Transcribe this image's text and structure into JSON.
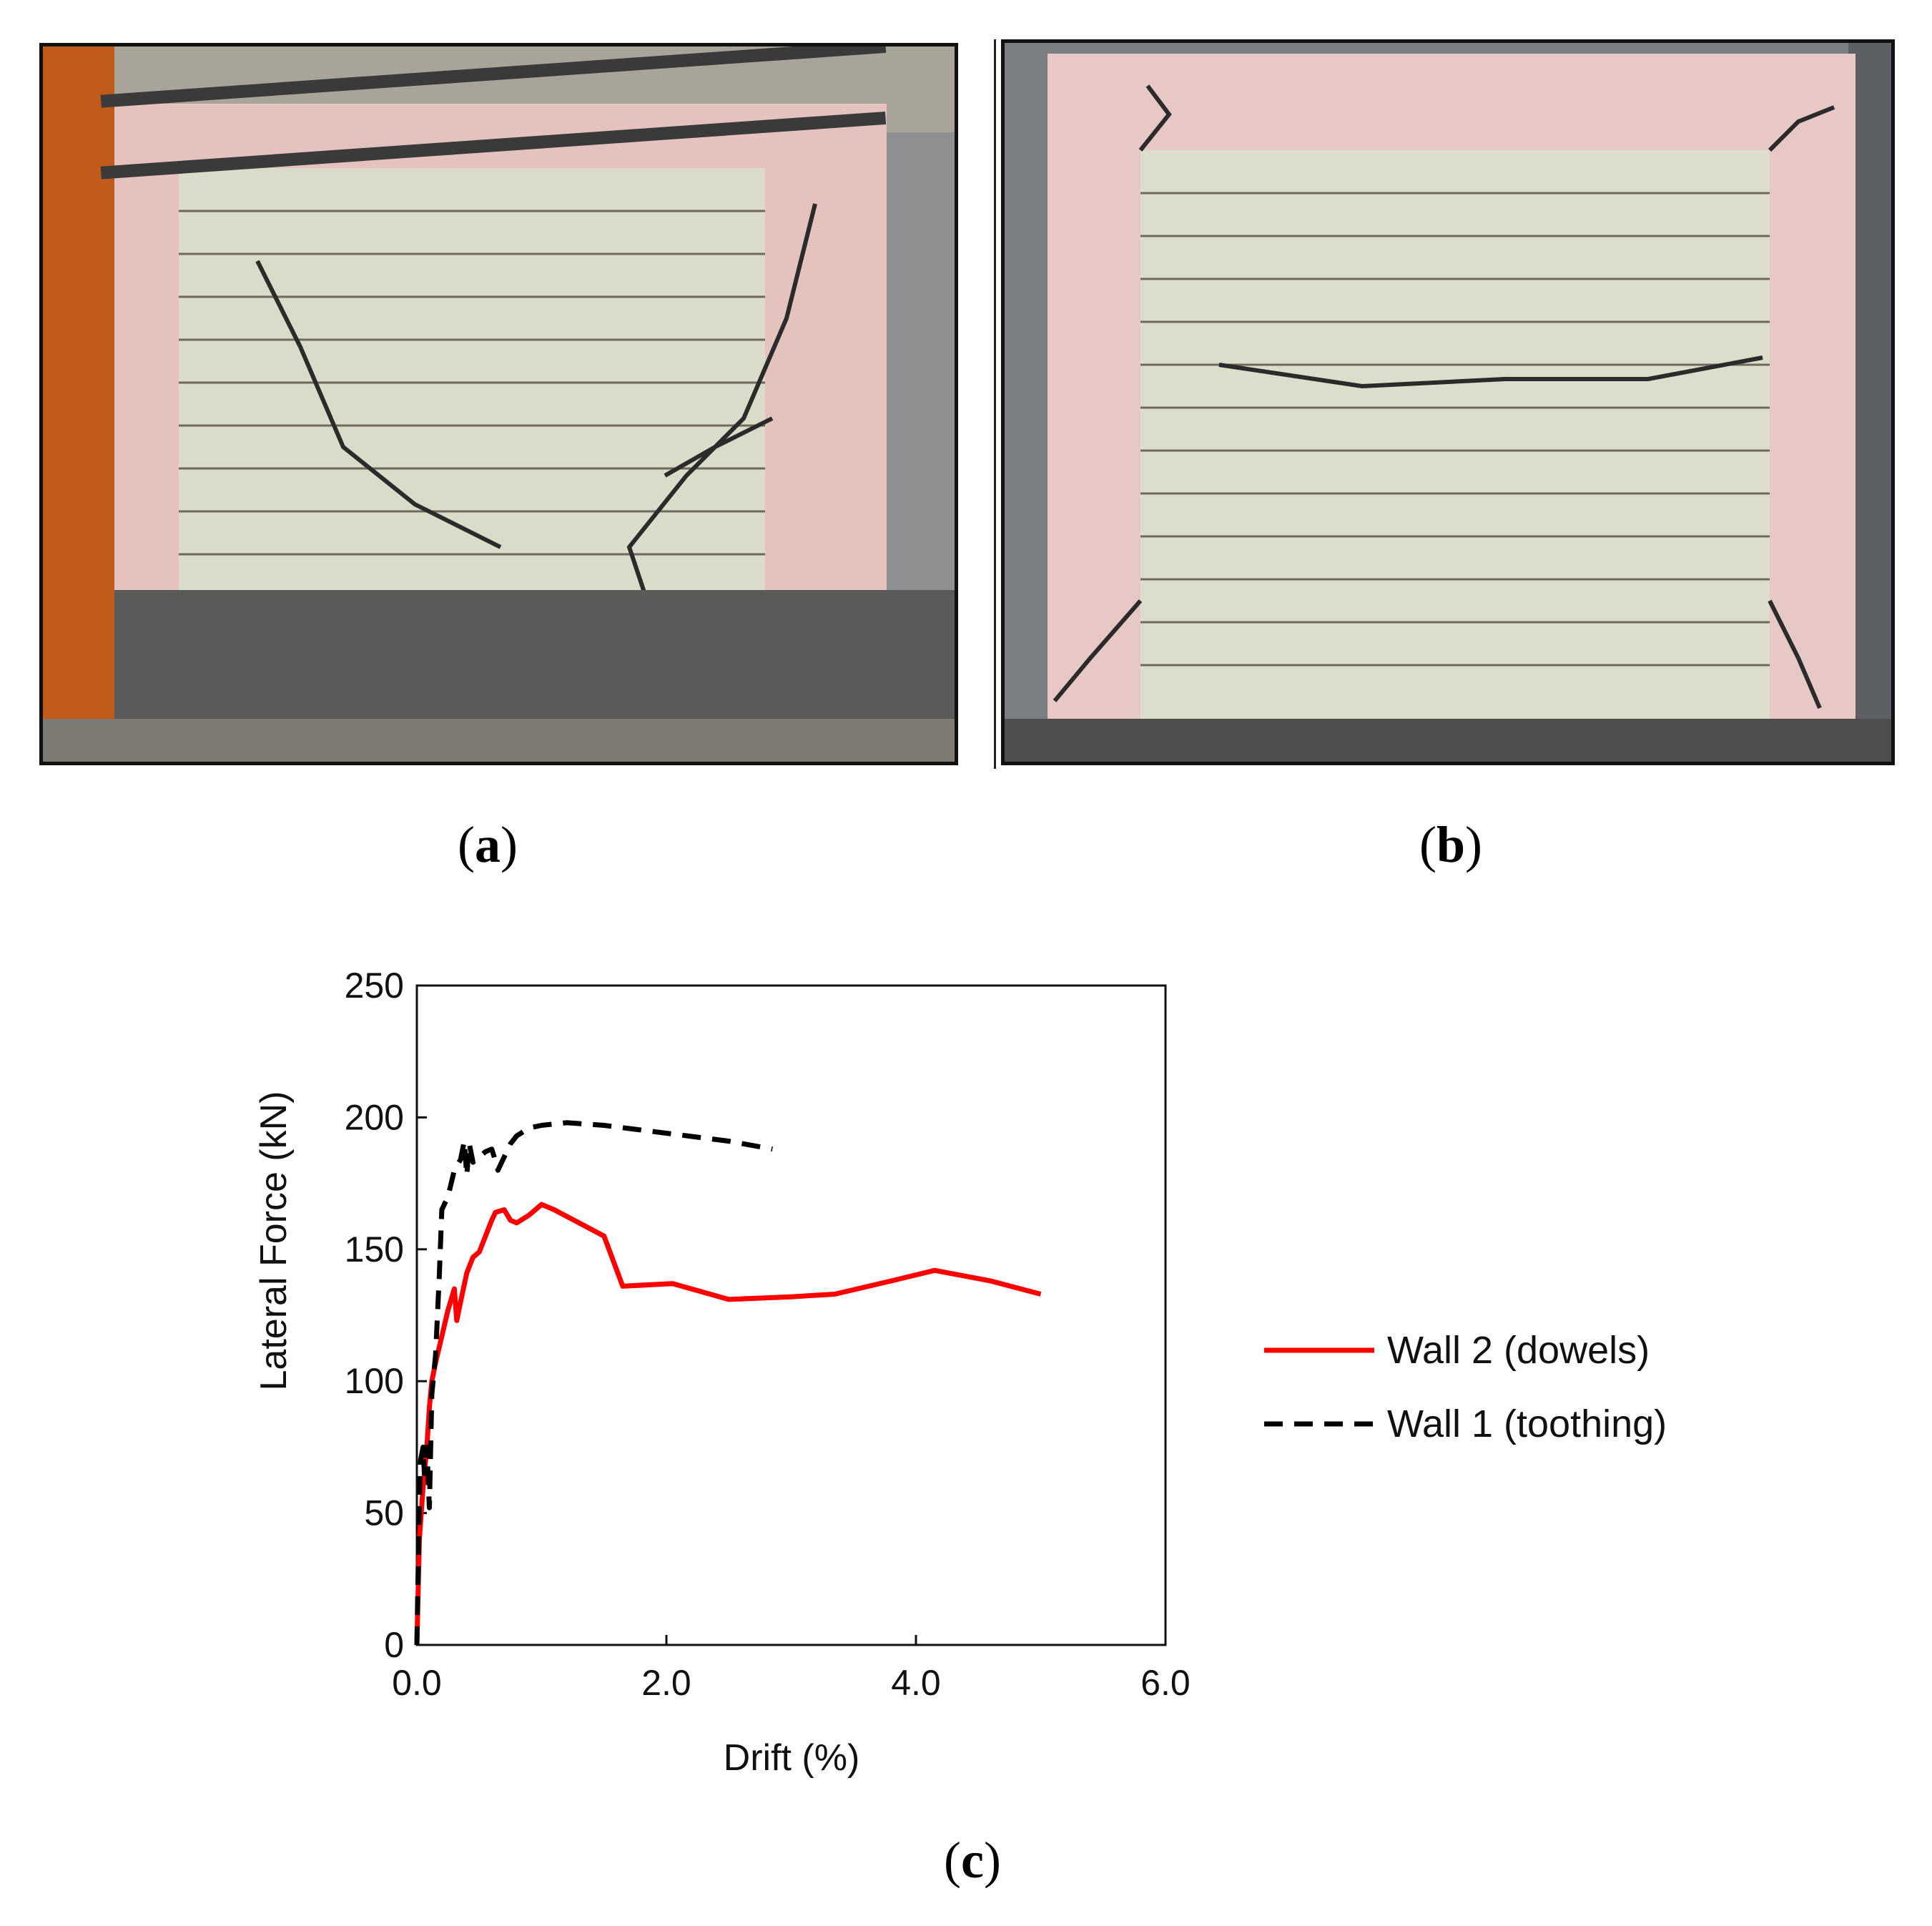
{
  "panels": {
    "a": "a",
    "b": "b",
    "c": "c"
  },
  "colors": {
    "wall2": "#ff0000",
    "wall1": "#000000",
    "plaster": "#e8c3c3",
    "brick": "#dcdcc8",
    "floor": "#555555"
  },
  "chart_data": {
    "type": "line",
    "xlabel": "Drift (%)",
    "ylabel": "Lateral Force (kN)",
    "xlim": [
      0,
      6
    ],
    "ylim": [
      0,
      250
    ],
    "xticks": [
      "0.0",
      "2.0",
      "4.0",
      "6.0"
    ],
    "yticks": [
      "0",
      "50",
      "100",
      "150",
      "200",
      "250"
    ],
    "grid": false,
    "legend_position": "right",
    "series": [
      {
        "name": "Wall 2 (dowels)",
        "style": "solid",
        "x": [
          0.0,
          0.02,
          0.05,
          0.08,
          0.1,
          0.12,
          0.15,
          0.2,
          0.25,
          0.3,
          0.32,
          0.35,
          0.4,
          0.45,
          0.5,
          0.55,
          0.6,
          0.63,
          0.7,
          0.75,
          0.8,
          0.9,
          1.0,
          1.1,
          1.3,
          1.5,
          1.65,
          2.05,
          2.5,
          3.0,
          3.35,
          3.8,
          4.15,
          4.6,
          5.0
        ],
        "y": [
          0,
          40,
          60,
          75,
          90,
          100,
          107,
          117,
          127,
          135,
          123,
          130,
          141,
          147,
          149,
          155,
          161,
          164,
          165,
          161,
          160,
          163,
          167,
          165,
          160,
          155,
          136,
          137,
          131,
          132,
          133,
          138,
          142,
          138,
          133
        ]
      },
      {
        "name": "Wall 1 (toothing)",
        "style": "dashed",
        "x": [
          0.0,
          0.02,
          0.03,
          0.05,
          0.06,
          0.08,
          0.1,
          0.12,
          0.15,
          0.18,
          0.2,
          0.25,
          0.3,
          0.35,
          0.38,
          0.4,
          0.42,
          0.45,
          0.5,
          0.55,
          0.6,
          0.62,
          0.65,
          0.7,
          0.75,
          0.8,
          0.9,
          1.0,
          1.2,
          1.5,
          2.0,
          2.5,
          2.85
        ],
        "y": [
          0,
          55,
          70,
          75,
          65,
          75,
          52,
          95,
          110,
          140,
          165,
          170,
          180,
          184,
          191,
          178,
          190,
          183,
          185,
          187,
          188,
          185,
          180,
          185,
          190,
          193,
          196,
          197,
          198,
          197,
          194,
          191,
          188
        ]
      }
    ]
  }
}
